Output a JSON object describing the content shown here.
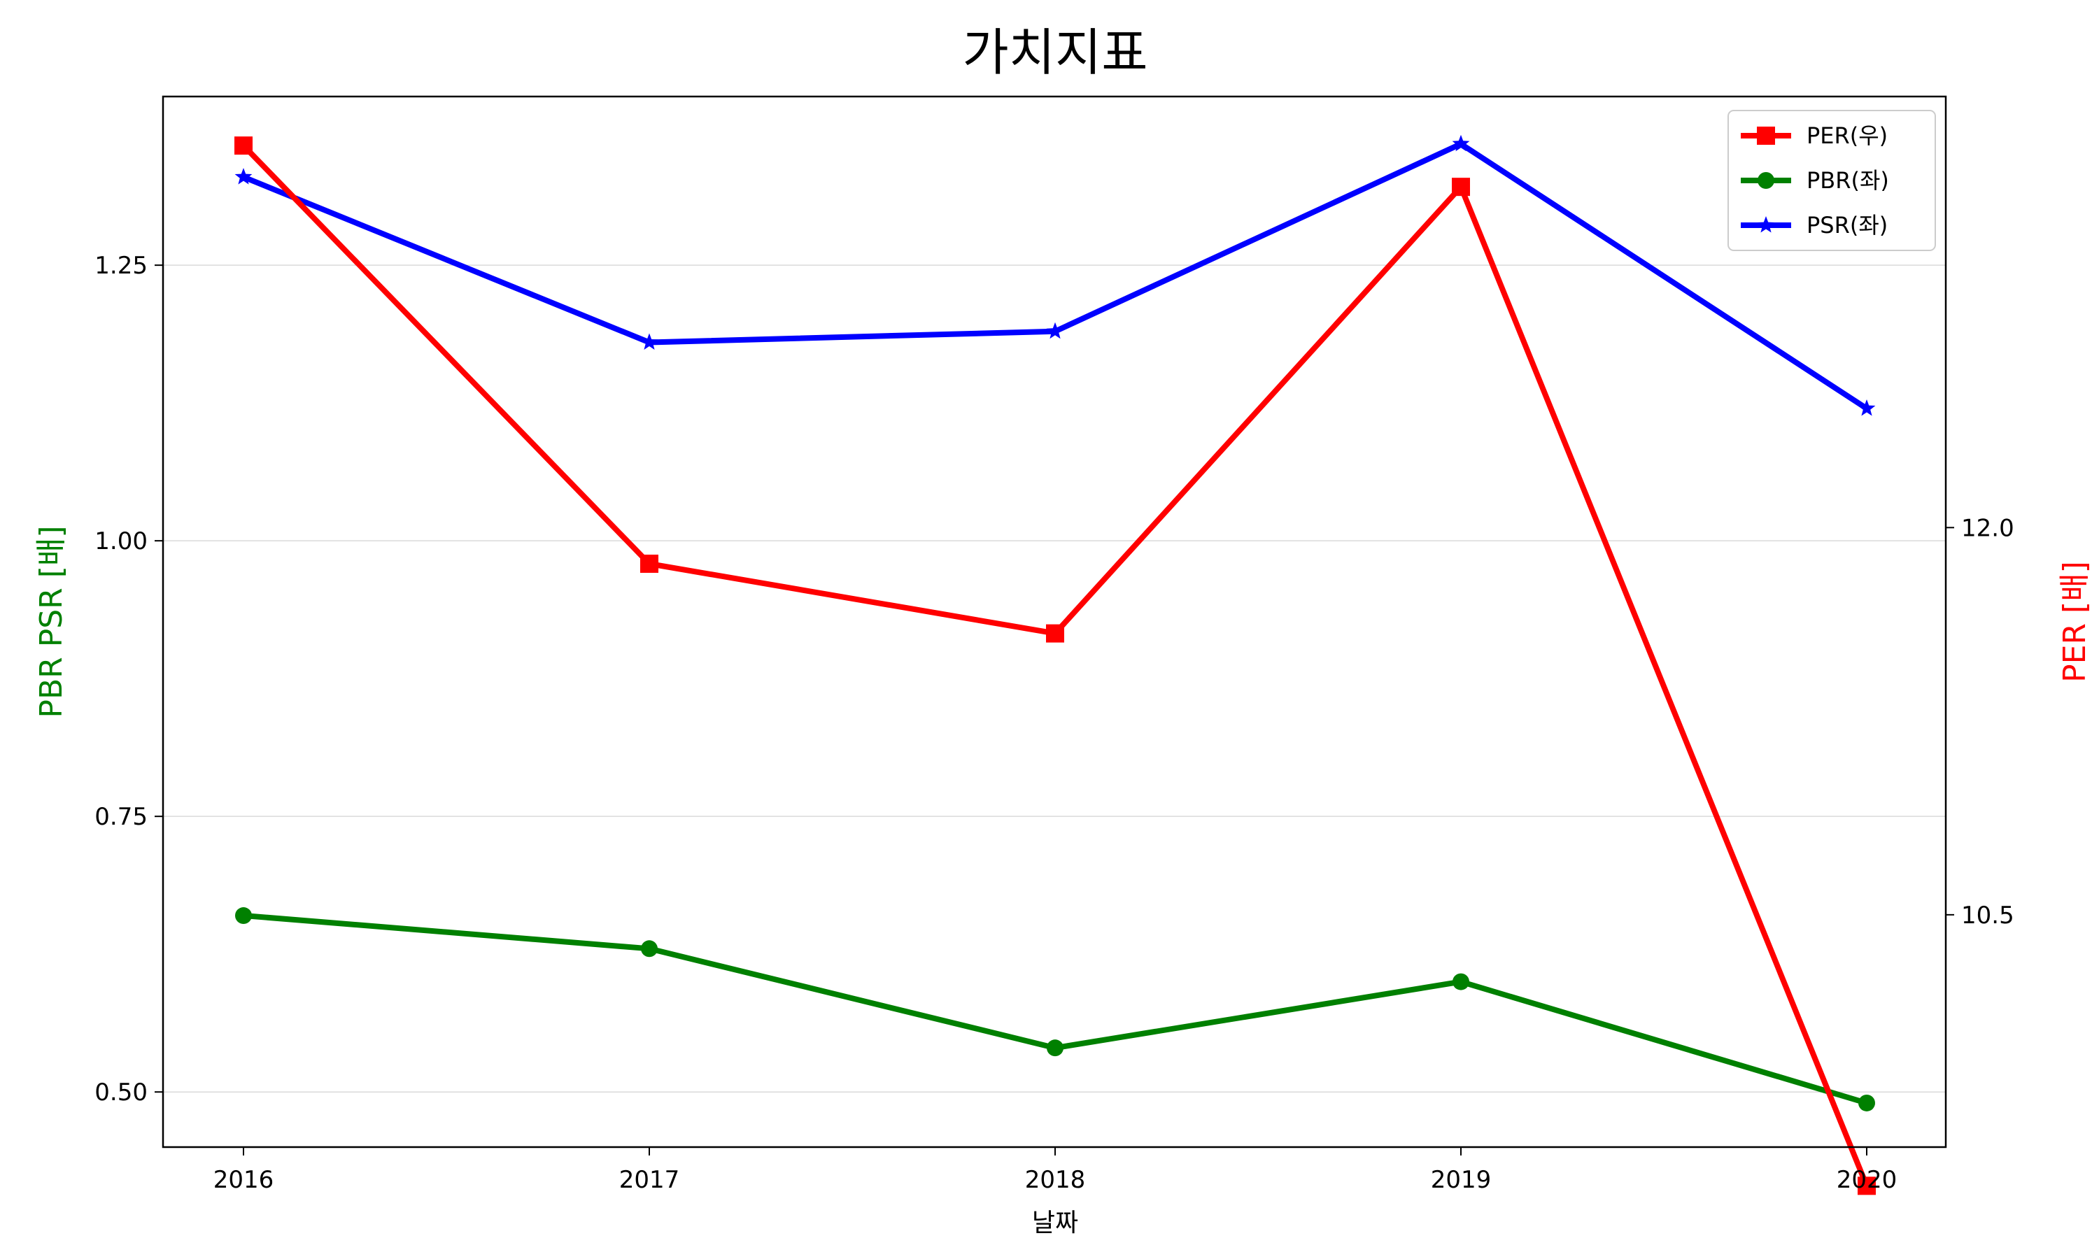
{
  "chart_data": {
    "type": "line",
    "title": "가치지표",
    "xlabel": "날짜",
    "ylabel_left": "PBR PSR [배]",
    "ylabel_right": "PER [배]",
    "categories": [
      "2016",
      "2017",
      "2018",
      "2019",
      "2020"
    ],
    "left_axis": {
      "ylim": [
        0.45,
        1.403
      ],
      "ticks": [
        0.5,
        0.75,
        1.0,
        1.25
      ],
      "tick_labels": [
        "0.50",
        "0.75",
        "1.00",
        "1.25"
      ]
    },
    "right_axis": {
      "ylim": [
        9.6,
        13.67
      ],
      "ticks": [
        10.5,
        12.0
      ],
      "tick_labels": [
        "10.5",
        "12.0"
      ]
    },
    "grid": "horizontal",
    "legend_position": "top-right",
    "series": [
      {
        "name": "PER(우)",
        "axis": "right",
        "color": "#ff0000",
        "marker": "square",
        "values": [
          13.48,
          11.86,
          11.59,
          13.32,
          9.45
        ]
      },
      {
        "name": "PBR(좌)",
        "axis": "left",
        "color": "#008000",
        "marker": "circle",
        "values": [
          0.66,
          0.63,
          0.54,
          0.6,
          0.49
        ]
      },
      {
        "name": "PSR(좌)",
        "axis": "left",
        "color": "#0000ff",
        "marker": "star",
        "values": [
          1.33,
          1.18,
          1.19,
          1.36,
          1.12
        ]
      }
    ]
  }
}
